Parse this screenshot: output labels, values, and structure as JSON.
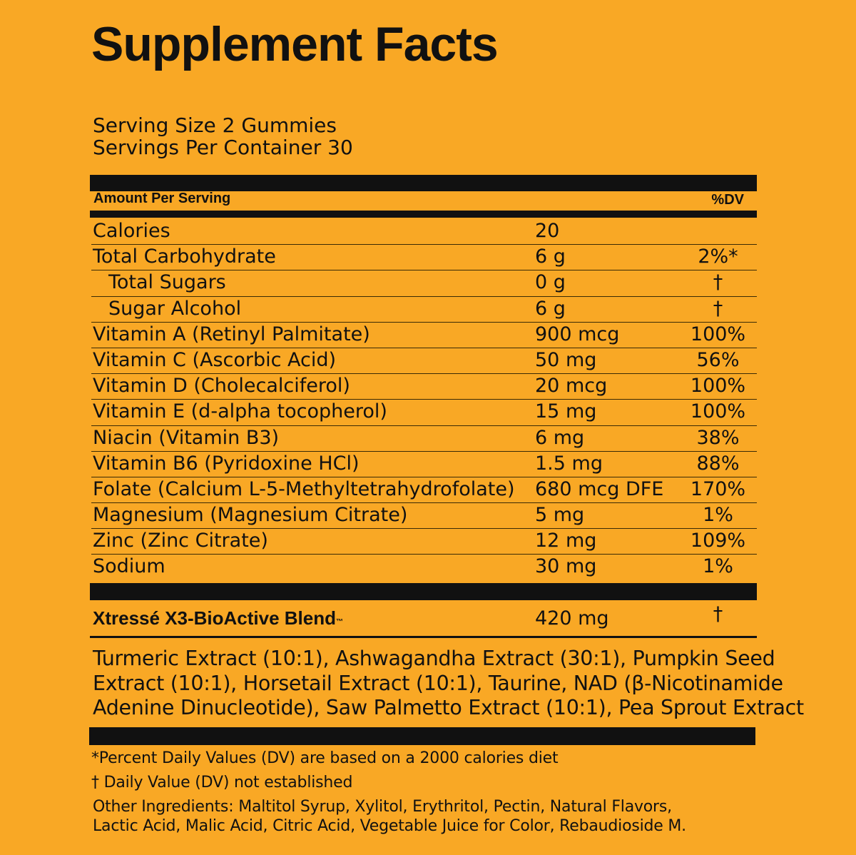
{
  "title": "Supplement Facts",
  "serving": {
    "size": "Serving Size 2 Gummies",
    "per_container": "Servings Per Container 30"
  },
  "table": {
    "header_amount": "Amount Per Serving",
    "header_dv": "%DV",
    "rows": [
      {
        "name": "Calories",
        "amount": "20",
        "dv": ""
      },
      {
        "name": "Total Carbohydrate",
        "amount": "6 g",
        "dv": "2%*"
      },
      {
        "name": "Total Sugars",
        "amount": "0 g",
        "dv": "†"
      },
      {
        "name": "Sugar Alcohol",
        "amount": "6 g",
        "dv": "†"
      },
      {
        "name": "Vitamin A (Retinyl Palmitate)",
        "amount": "900 mcg",
        "dv": "100%"
      },
      {
        "name": "Vitamin C (Ascorbic Acid)",
        "amount": "50 mg",
        "dv": "56%"
      },
      {
        "name": "Vitamin D (Cholecalciferol)",
        "amount": "20 mcg",
        "dv": "100%"
      },
      {
        "name": "Vitamin E (d-alpha tocopherol)",
        "amount": "15 mg",
        "dv": "100%"
      },
      {
        "name": "Niacin (Vitamin B3)",
        "amount": "6 mg",
        "dv": "38%"
      },
      {
        "name": "Vitamin B6 (Pyridoxine HCl)",
        "amount": "1.5 mg",
        "dv": "88%"
      },
      {
        "name": "Folate (Calcium L-5-Methyltetrahydrofolate)",
        "amount": "680 mcg DFE",
        "dv": "170%"
      },
      {
        "name": "Magnesium (Magnesium Citrate)",
        "amount": "5 mg",
        "dv": "1%"
      },
      {
        "name": "Zinc (Zinc Citrate)",
        "amount": "12 mg",
        "dv": "109%"
      },
      {
        "name": "Sodium",
        "amount": "30 mg",
        "dv": "1%"
      }
    ]
  },
  "blend": {
    "name": "Xtressé X3-BioActive Blend",
    "tm": "™",
    "amount": "420 mg",
    "dv": "†",
    "ingredients": "Turmeric Extract (10:1), Ashwagandha Extract (30:1), Pumpkin Seed Extract (10:1), Horsetail Extract (10:1), Taurine, NAD (β-Nicotinamide Adenine Dinucleotide), Saw Palmetto Extract (10:1), Pea Sprout Extract"
  },
  "footnotes": {
    "percent_dv": "*Percent Daily Values (DV) are based on a 2000 calories diet",
    "dagger": "† Daily Value (DV) not established",
    "other_ingredients": "Other Ingredients: Maltitol Syrup, Xylitol, Erythritol, Pectin, Natural Flavors, Lactic Acid, Malic Acid, Citric Acid, Vegetable Juice for Color, Rebaudioside M."
  },
  "colors": {
    "background": "#F9A825",
    "text": "#111111"
  }
}
